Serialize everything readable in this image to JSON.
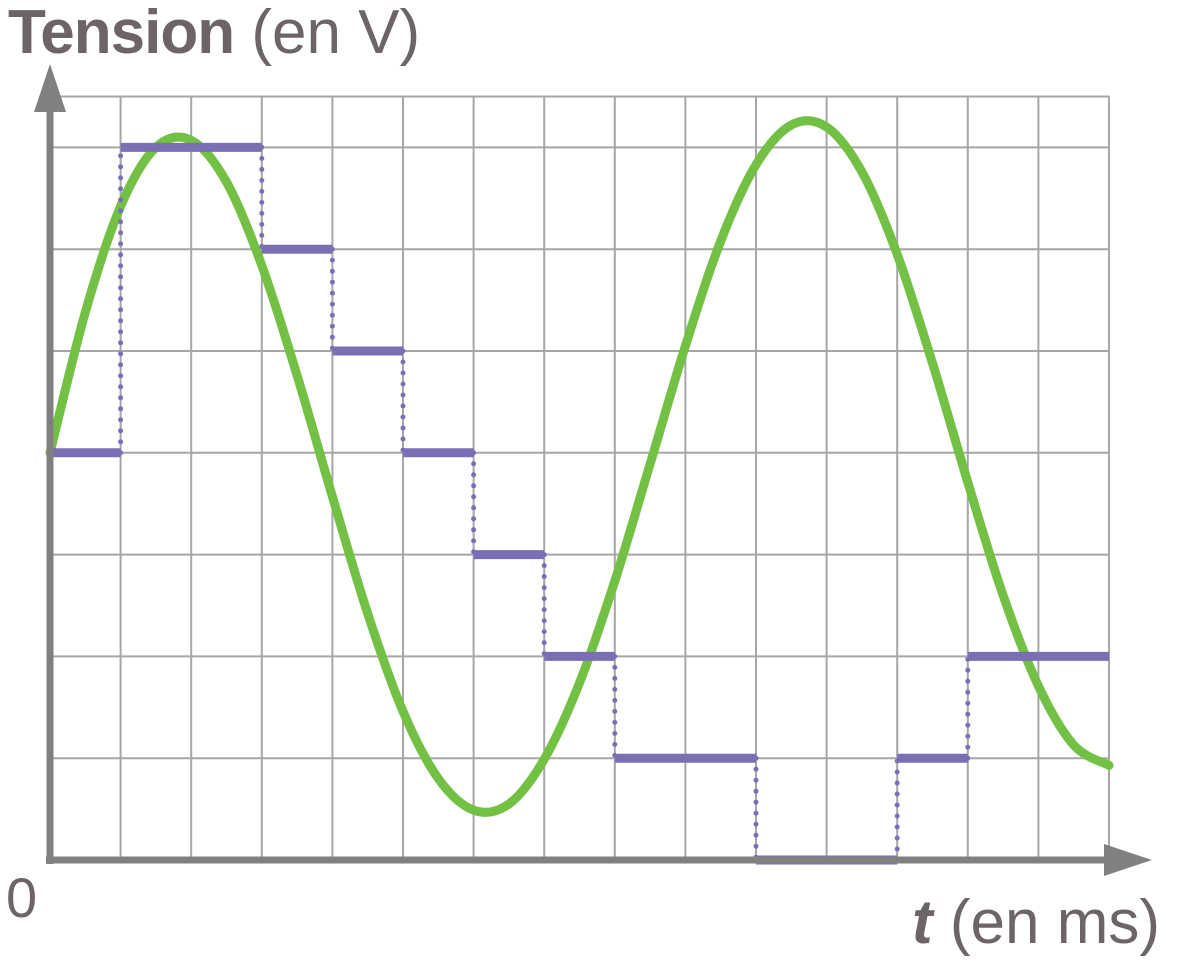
{
  "labels": {
    "y_bold": "Tension",
    "y_unit": "(en V)",
    "x_var": "t",
    "x_unit": "(en ms)",
    "origin": "0"
  },
  "colors": {
    "grid": "#a6a6a6",
    "axis": "#808080",
    "curve": "#72c044",
    "steps": "#7a6fb5",
    "text": "#6d6467"
  },
  "chart_data": {
    "type": "line",
    "title": "",
    "xlabel": "t (en ms)",
    "ylabel": "Tension (en V)",
    "xlim": [
      0,
      15
    ],
    "ylim": [
      0,
      7.5
    ],
    "grid": true,
    "x_ticks_labeled": [
      "0"
    ],
    "series": [
      {
        "kind": "sinusoid",
        "x": [
          0,
          0.5,
          1,
          1.5,
          2,
          2.5,
          3,
          3.5,
          4,
          4.5,
          5,
          5.5,
          6,
          6.5,
          7,
          7.5,
          8,
          8.5,
          9,
          9.5,
          10,
          10.5,
          11,
          11.5,
          12,
          12.5,
          13,
          13.5,
          14,
          14.5,
          15
        ],
        "values": [
          4.0,
          5.38,
          6.42,
          7.0,
          7.07,
          6.66,
          5.84,
          4.76,
          3.57,
          2.42,
          1.46,
          0.8,
          0.49,
          0.55,
          0.99,
          1.74,
          2.74,
          3.89,
          5.05,
          6.08,
          6.83,
          7.22,
          7.2,
          6.76,
          5.95,
          4.88,
          3.71,
          2.6,
          1.71,
          1.13,
          0.93
        ]
      },
      {
        "kind": "sampled-steps",
        "sample_t": [
          0,
          1,
          2,
          3,
          4,
          5,
          6,
          7,
          8,
          9,
          10,
          11,
          12,
          13,
          14
        ],
        "levels": [
          4,
          7,
          7,
          6,
          5,
          4,
          3,
          2,
          1,
          1,
          0,
          0,
          1,
          2,
          2
        ],
        "step_ends": [
          1,
          2,
          3,
          4,
          5,
          6,
          7,
          8,
          9,
          10,
          11,
          12,
          13,
          14,
          15
        ]
      }
    ]
  }
}
